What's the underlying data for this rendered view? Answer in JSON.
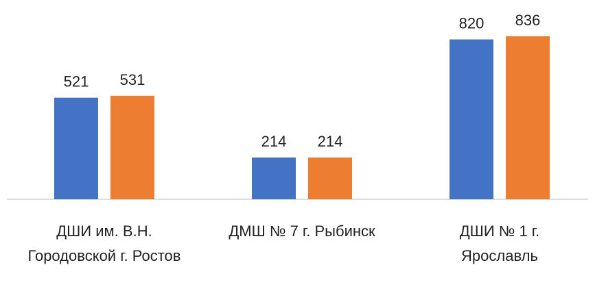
{
  "chart_data": {
    "type": "bar",
    "categories": [
      "ДШИ им. В.Н. Городовской г. Ростов",
      "ДМШ № 7 г. Рыбинск",
      "ДШИ № 1 г. Ярославль"
    ],
    "series": [
      {
        "color": "#4472c4",
        "values": [
          521,
          214,
          820
        ]
      },
      {
        "color": "#ed7d31",
        "values": [
          531,
          214,
          836
        ]
      }
    ]
  }
}
